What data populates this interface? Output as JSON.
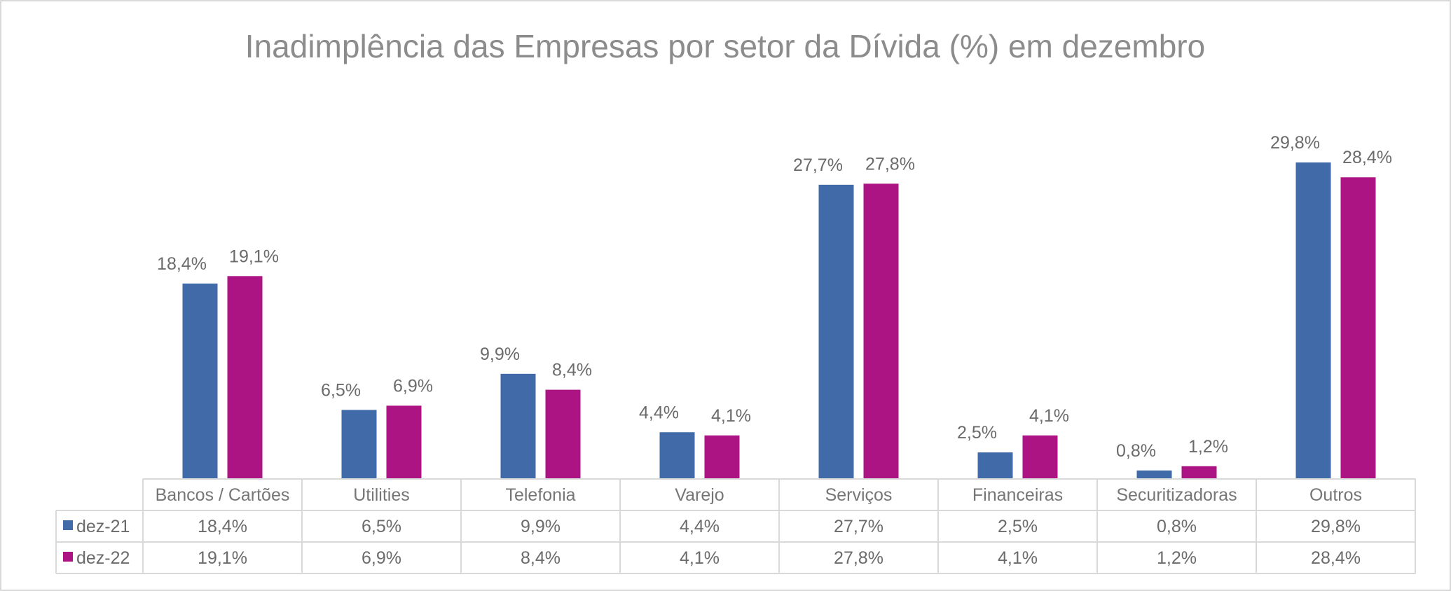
{
  "chart_data": {
    "type": "bar",
    "title": "Inadimplência das Empresas por setor da Dívida (%) em dezembro",
    "categories": [
      "Bancos / Cartões",
      "Utilities",
      "Telefonia",
      "Varejo",
      "Serviços",
      "Financeiras",
      "Securitizadoras",
      "Outros"
    ],
    "series": [
      {
        "name": "dez-21",
        "color": "#406BA8",
        "values": [
          18.4,
          6.5,
          9.9,
          4.4,
          27.7,
          2.5,
          0.8,
          29.8
        ],
        "labels": [
          "18,4%",
          "6,5%",
          "9,9%",
          "4,4%",
          "27,7%",
          "2,5%",
          "0,8%",
          "29,8%"
        ]
      },
      {
        "name": "dez-22",
        "color": "#AD1483",
        "values": [
          19.1,
          6.9,
          8.4,
          4.1,
          27.8,
          4.1,
          1.2,
          28.4
        ],
        "labels": [
          "19,1%",
          "6,9%",
          "8,4%",
          "4,1%",
          "27,8%",
          "4,1%",
          "1,2%",
          "28,4%"
        ]
      }
    ],
    "ylim": [
      0,
      32
    ],
    "xlabel": "",
    "ylabel": "",
    "grid": false,
    "legend": "data-table"
  }
}
